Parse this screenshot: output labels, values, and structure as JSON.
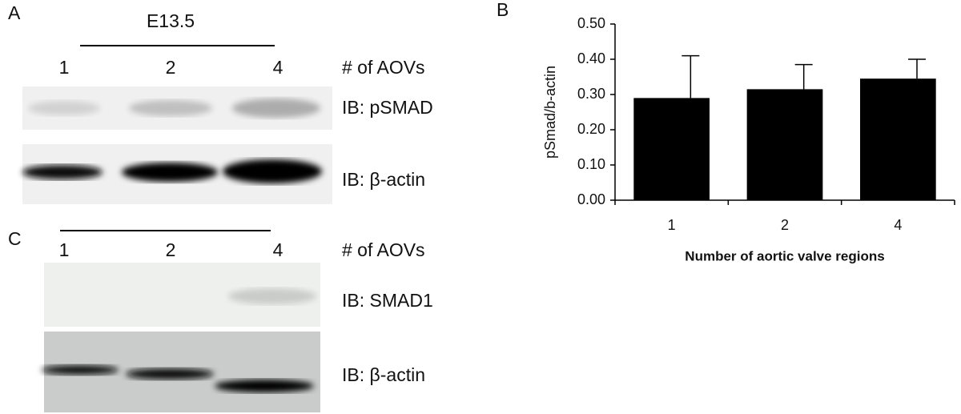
{
  "panel_a": {
    "label": "A",
    "stage": "E13.5",
    "lanes": [
      "1",
      "2",
      "4"
    ],
    "lane_title": "# of AOVs",
    "blots": [
      "IB: pSMAD",
      "IB: β-actin"
    ]
  },
  "panel_c": {
    "label": "C",
    "lanes": [
      "1",
      "2",
      "4"
    ],
    "lane_title": "# of AOVs",
    "blots": [
      "IB: SMAD1",
      "IB: β-actin"
    ]
  },
  "chart_data": {
    "type": "bar",
    "panel_label": "B",
    "y_label": "pSmad/b-actin",
    "x_label": "Number of aortic valve regions",
    "categories": [
      "1",
      "2",
      "4"
    ],
    "values": [
      0.29,
      0.315,
      0.345
    ],
    "errors": [
      0.12,
      0.07,
      0.055
    ],
    "color": "#000000",
    "ylim": [
      0,
      0.5
    ],
    "yticks": [
      {
        "value": 0,
        "label": "0.00"
      },
      {
        "value": 0.1,
        "label": "0.10"
      },
      {
        "value": 0.2,
        "label": "0.20"
      },
      {
        "value": 0.3,
        "label": "0.30"
      },
      {
        "value": 0.4,
        "label": "0.40"
      },
      {
        "value": 0.5,
        "label": "0.50"
      }
    ]
  }
}
